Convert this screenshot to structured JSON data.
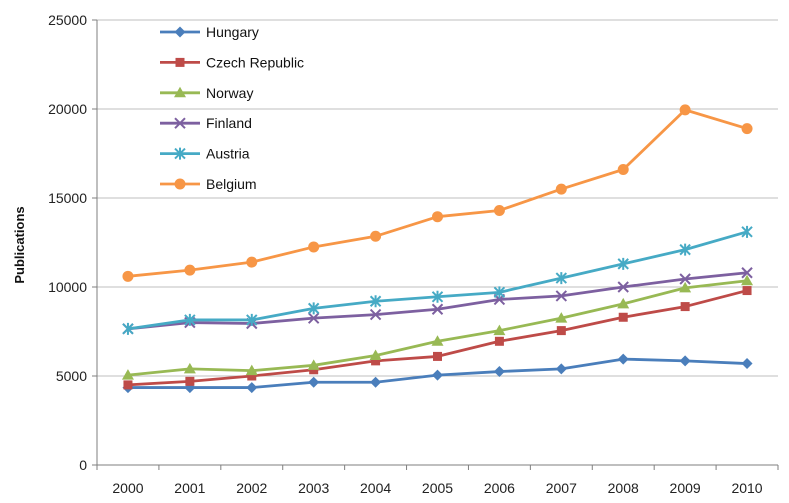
{
  "chart_data": {
    "type": "line",
    "title": "",
    "xlabel": "",
    "ylabel": "Publications",
    "ylim": [
      0,
      25000
    ],
    "yticks": [
      0,
      5000,
      10000,
      15000,
      20000,
      25000
    ],
    "x": [
      "2000",
      "2001",
      "2002",
      "2003",
      "2004",
      "2005",
      "2006",
      "2007",
      "2008",
      "2009",
      "2010"
    ],
    "grid": "horizontal",
    "legend_position": "top-left",
    "series": [
      {
        "name": "Hungary",
        "color": "#4A7EBB",
        "marker": "diamond",
        "values": [
          4350,
          4350,
          4350,
          4650,
          4650,
          5050,
          5250,
          5400,
          5950,
          5850,
          5700
        ]
      },
      {
        "name": "Czech Republic",
        "color": "#BE4B48",
        "marker": "square",
        "values": [
          4500,
          4700,
          5000,
          5350,
          5850,
          6100,
          6950,
          7550,
          8300,
          8900,
          9800
        ]
      },
      {
        "name": "Norway",
        "color": "#98B954",
        "marker": "triangle",
        "values": [
          5050,
          5400,
          5300,
          5600,
          6150,
          6950,
          7550,
          8250,
          9050,
          9950,
          10350
        ]
      },
      {
        "name": "Finland",
        "color": "#7D60A0",
        "marker": "x",
        "values": [
          7650,
          8000,
          7950,
          8250,
          8450,
          8750,
          9300,
          9500,
          10000,
          10450,
          10800
        ]
      },
      {
        "name": "Austria",
        "color": "#46AAC5",
        "marker": "star",
        "values": [
          7650,
          8150,
          8150,
          8800,
          9200,
          9450,
          9700,
          10500,
          11300,
          12100,
          13100
        ]
      },
      {
        "name": "Belgium",
        "color": "#F79646",
        "marker": "circle",
        "values": [
          10600,
          10950,
          11400,
          12250,
          12850,
          13950,
          14300,
          15500,
          16600,
          19950,
          18900
        ]
      }
    ]
  }
}
